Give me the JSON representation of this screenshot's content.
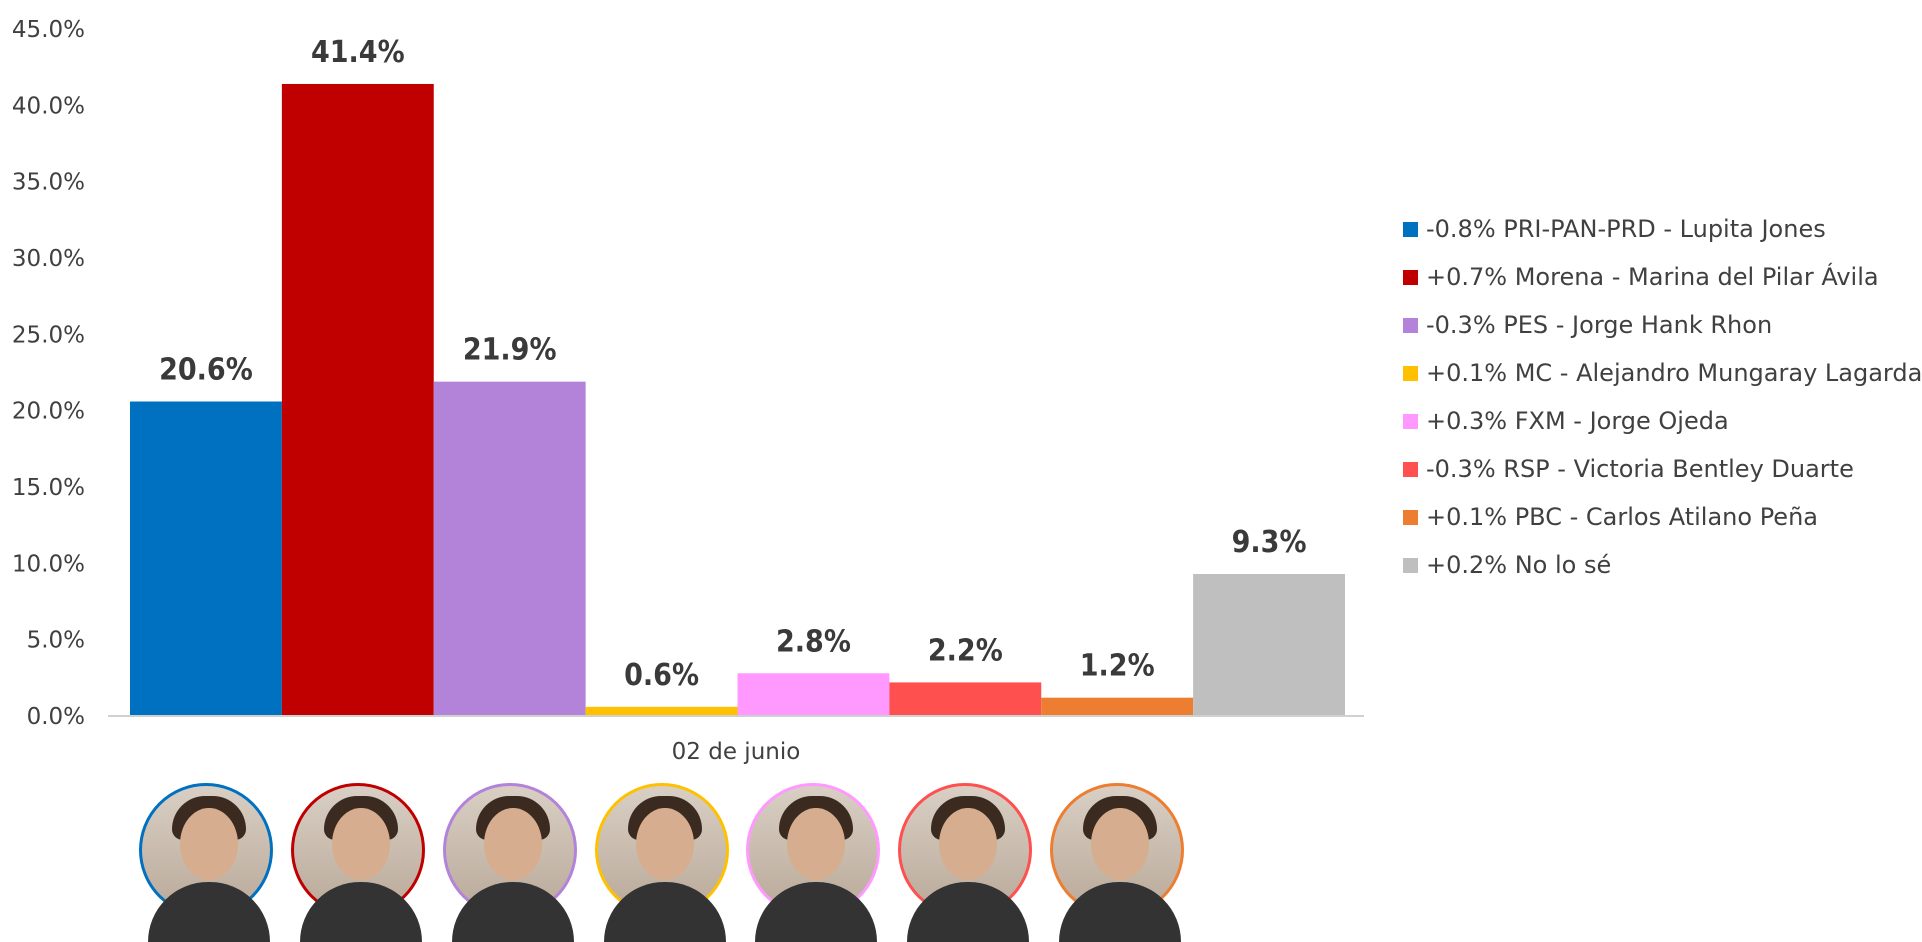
{
  "chart_data": {
    "type": "bar",
    "categories": [
      "02 de junio"
    ],
    "ylim": [
      0,
      45
    ],
    "yticks": [
      "0.0%",
      "5.0%",
      "10.0%",
      "15.0%",
      "20.0%",
      "25.0%",
      "30.0%",
      "35.0%",
      "40.0%",
      "45.0%"
    ],
    "grid": false,
    "legend_position": "right",
    "series": [
      {
        "name": "-0.8% PRI-PAN-PRD - Lupita Jones",
        "value": 20.6,
        "label": "20.6%",
        "color": "#0070c0"
      },
      {
        "name": "+0.7% Morena - Marina del Pilar Ávila",
        "value": 41.4,
        "label": "41.4%",
        "color": "#c00000"
      },
      {
        "name": "-0.3% PES - Jorge Hank Rhon",
        "value": 21.9,
        "label": "21.9%",
        "color": "#b383d9"
      },
      {
        "name": "+0.1% MC - Alejandro Mungaray Lagarda",
        "value": 0.6,
        "label": "0.6%",
        "color": "#ffc000"
      },
      {
        "name": "+0.3% FXM - Jorge Ojeda",
        "value": 2.8,
        "label": "2.8%",
        "color": "#ff99ff"
      },
      {
        "name": "-0.3% RSP - Victoria Bentley Duarte",
        "value": 2.2,
        "label": "2.2%",
        "color": "#ff5050"
      },
      {
        "name": "+0.1% PBC - Carlos Atilano Peña",
        "value": 1.2,
        "label": "1.2%",
        "color": "#ed7d31"
      },
      {
        "name": "+0.2% No lo sé",
        "value": 9.3,
        "label": "9.3%",
        "color": "#bfbfbf"
      }
    ]
  },
  "candidate_photos": [
    {
      "border": "#0070c0",
      "icon": "candidate-photo"
    },
    {
      "border": "#c00000",
      "icon": "candidate-photo"
    },
    {
      "border": "#b383d9",
      "icon": "candidate-photo"
    },
    {
      "border": "#ffc000",
      "icon": "candidate-photo"
    },
    {
      "border": "#ff99ff",
      "icon": "candidate-photo"
    },
    {
      "border": "#ff5050",
      "icon": "candidate-photo"
    },
    {
      "border": "#ed7d31",
      "icon": "candidate-photo"
    }
  ]
}
